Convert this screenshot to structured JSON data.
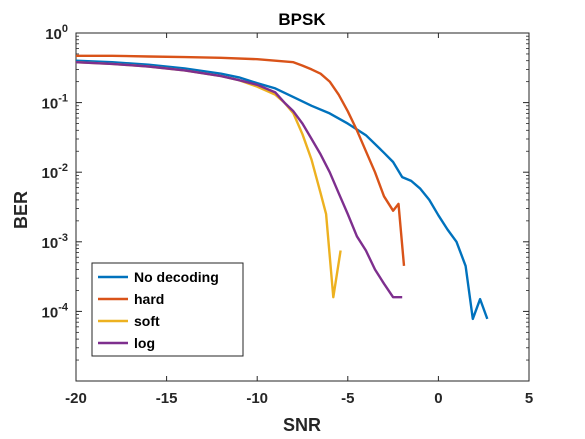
{
  "chart_data": {
    "type": "line",
    "title": "BPSK",
    "xlabel": "SNR",
    "ylabel": "BER",
    "xlim": [
      -20,
      5
    ],
    "ylim_log10": [
      -5,
      0
    ],
    "yscale": "log",
    "grid": false,
    "legend_position": "bottom-left",
    "xticks": [
      -20,
      -15,
      -10,
      -5,
      0,
      5
    ],
    "xtick_labels": [
      "-20",
      "-15",
      "-10",
      "-5",
      "0",
      "5"
    ],
    "yticks_log10": [
      0,
      -1,
      -2,
      -3,
      -4
    ],
    "ytick_labels": [
      {
        "base": "10",
        "exp": "0"
      },
      {
        "base": "10",
        "exp": "-1"
      },
      {
        "base": "10",
        "exp": "-2"
      },
      {
        "base": "10",
        "exp": "-3"
      },
      {
        "base": "10",
        "exp": "-4"
      }
    ],
    "series": [
      {
        "name": "No decoding",
        "color": "#0072BD",
        "points": [
          [
            -20,
            0.4
          ],
          [
            -18,
            0.38
          ],
          [
            -16,
            0.35
          ],
          [
            -14,
            0.31
          ],
          [
            -12,
            0.26
          ],
          [
            -11,
            0.23
          ],
          [
            -10,
            0.19
          ],
          [
            -9,
            0.16
          ],
          [
            -8,
            0.12
          ],
          [
            -7,
            0.09
          ],
          [
            -6,
            0.07
          ],
          [
            -5,
            0.05
          ],
          [
            -4,
            0.034
          ],
          [
            -3,
            0.019
          ],
          [
            -2.5,
            0.014
          ],
          [
            -2,
            0.0085
          ],
          [
            -1.5,
            0.0075
          ],
          [
            -1,
            0.0058
          ],
          [
            -0.5,
            0.004
          ],
          [
            0,
            0.0024
          ],
          [
            0.5,
            0.0015
          ],
          [
            1,
            0.001
          ],
          [
            1.5,
            0.00045
          ],
          [
            1.9,
            7.8e-05
          ],
          [
            2.3,
            0.00015
          ],
          [
            2.7,
            7.8e-05
          ]
        ]
      },
      {
        "name": "hard",
        "color": "#D95319",
        "points": [
          [
            -20,
            0.47
          ],
          [
            -18,
            0.47
          ],
          [
            -16,
            0.46
          ],
          [
            -14,
            0.45
          ],
          [
            -12,
            0.44
          ],
          [
            -10,
            0.42
          ],
          [
            -9,
            0.4
          ],
          [
            -8,
            0.38
          ],
          [
            -7.5,
            0.34
          ],
          [
            -7,
            0.3
          ],
          [
            -6.5,
            0.26
          ],
          [
            -6,
            0.2
          ],
          [
            -5.5,
            0.13
          ],
          [
            -5,
            0.075
          ],
          [
            -4.5,
            0.04
          ],
          [
            -4,
            0.02
          ],
          [
            -3.5,
            0.01
          ],
          [
            -3,
            0.0045
          ],
          [
            -2.5,
            0.0028
          ],
          [
            -2.2,
            0.0035
          ],
          [
            -1.9,
            0.00045
          ]
        ]
      },
      {
        "name": "soft",
        "color": "#EDB120",
        "points": [
          [
            -20,
            0.38
          ],
          [
            -18,
            0.36
          ],
          [
            -16,
            0.33
          ],
          [
            -14,
            0.29
          ],
          [
            -12,
            0.24
          ],
          [
            -11,
            0.21
          ],
          [
            -10,
            0.17
          ],
          [
            -9,
            0.13
          ],
          [
            -8.5,
            0.1
          ],
          [
            -8,
            0.07
          ],
          [
            -7.5,
            0.035
          ],
          [
            -7,
            0.015
          ],
          [
            -6.5,
            0.005
          ],
          [
            -6.2,
            0.0025
          ],
          [
            -5.8,
            0.00016
          ],
          [
            -5.4,
            0.00075
          ]
        ]
      },
      {
        "name": "log",
        "color": "#7E2F8E",
        "points": [
          [
            -20,
            0.38
          ],
          [
            -18,
            0.36
          ],
          [
            -16,
            0.33
          ],
          [
            -14,
            0.29
          ],
          [
            -12,
            0.24
          ],
          [
            -11,
            0.21
          ],
          [
            -10,
            0.18
          ],
          [
            -9,
            0.14
          ],
          [
            -8.5,
            0.1
          ],
          [
            -8,
            0.075
          ],
          [
            -7.5,
            0.05
          ],
          [
            -7,
            0.03
          ],
          [
            -6.5,
            0.018
          ],
          [
            -6,
            0.01
          ],
          [
            -5.5,
            0.005
          ],
          [
            -5,
            0.0025
          ],
          [
            -4.5,
            0.0012
          ],
          [
            -4,
            0.00075
          ],
          [
            -3.5,
            0.0004
          ],
          [
            -3,
            0.00025
          ],
          [
            -2.5,
            0.00016
          ],
          [
            -2,
            0.00016
          ]
        ]
      }
    ]
  }
}
